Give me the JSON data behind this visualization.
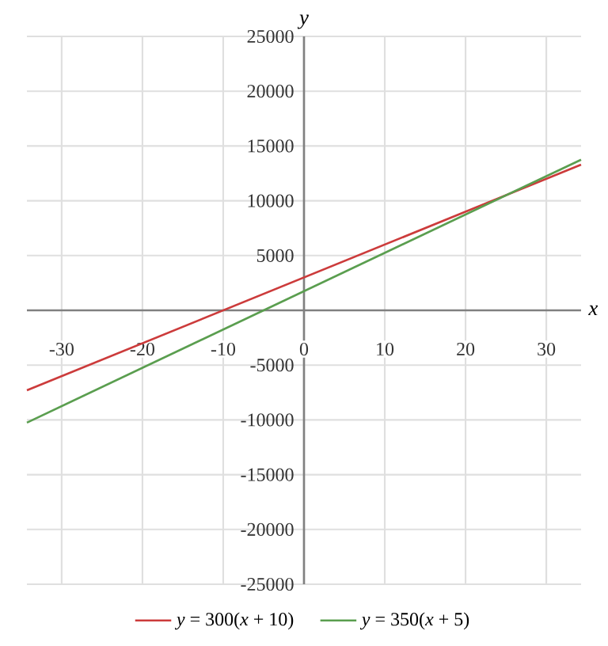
{
  "chart_data": {
    "type": "line",
    "xlabel": "x",
    "ylabel": "y",
    "x": [
      -34.3,
      34.3
    ],
    "series": [
      {
        "name": "*y* = 300(*x* + 10)",
        "color": "#cc3b3b",
        "values": [
          -7300,
          13300
        ]
      },
      {
        "name": "*y* = 350(*x* + 5)",
        "color": "#5a9e4f",
        "values": [
          -10250,
          13750
        ]
      }
    ],
    "xlim": [
      -34.3,
      34.3
    ],
    "ylim": [
      -25000,
      25000
    ],
    "xticks": [
      -30,
      -20,
      -10,
      0,
      10,
      20,
      30
    ],
    "yticks": [
      -25000,
      -20000,
      -15000,
      -10000,
      -5000,
      5000,
      10000,
      15000,
      20000,
      25000
    ],
    "grid": true,
    "legend": "bottom",
    "marker": "none",
    "line_style": "solid"
  }
}
